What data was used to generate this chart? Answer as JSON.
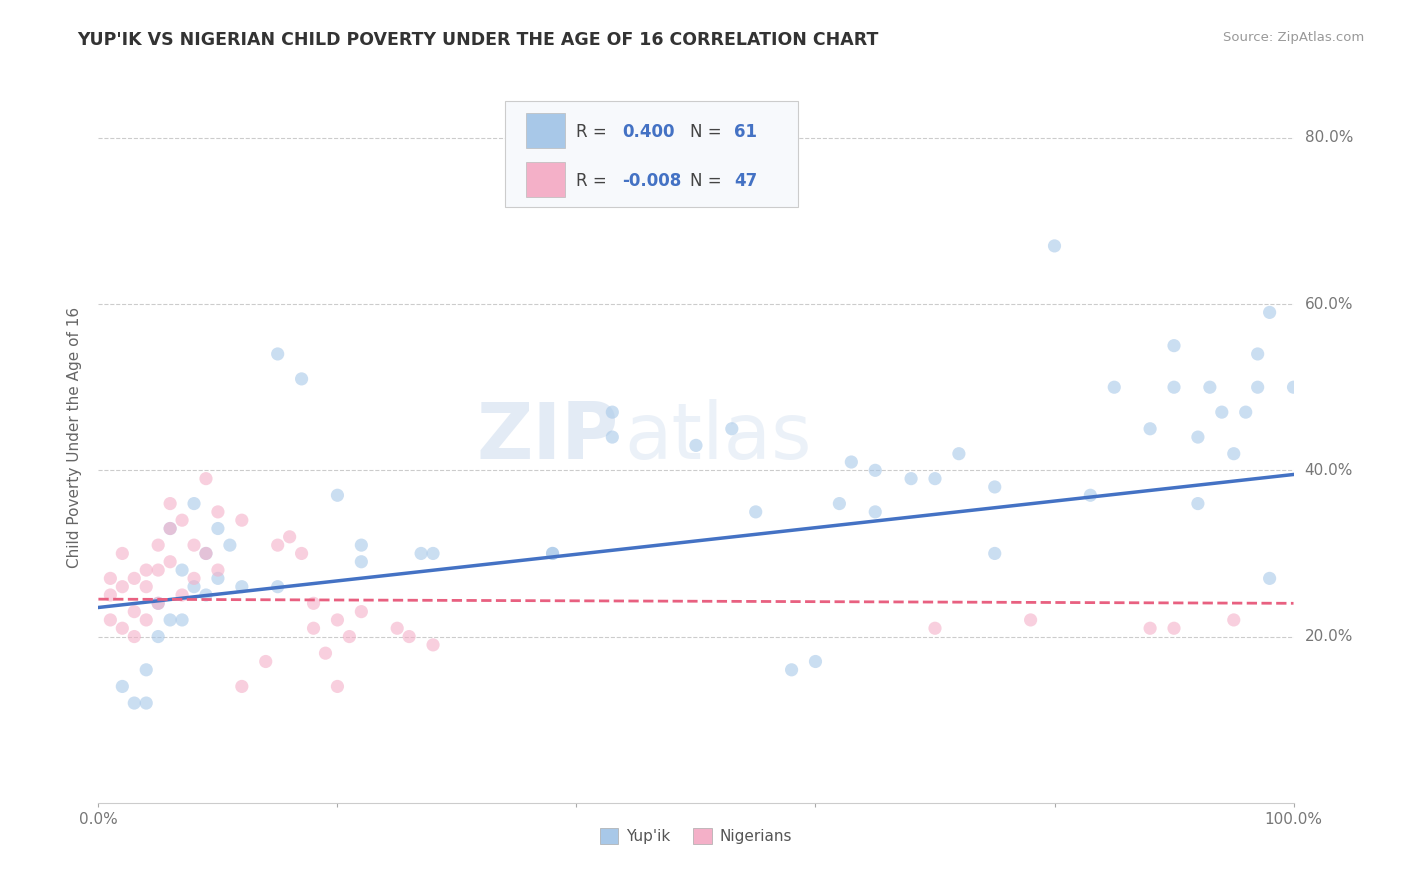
{
  "title": "YUP'IK VS NIGERIAN CHILD POVERTY UNDER THE AGE OF 16 CORRELATION CHART",
  "source": "Source: ZipAtlas.com",
  "ylabel": "Child Poverty Under the Age of 16",
  "xlim": [
    0.0,
    1.0
  ],
  "ylim": [
    0.0,
    0.88
  ],
  "xticks": [
    0.0,
    0.2,
    0.4,
    0.6,
    0.8,
    1.0
  ],
  "xtick_labels": [
    "0.0%",
    "",
    "",
    "",
    "",
    "100.0%"
  ],
  "ytick_values": [
    0.2,
    0.4,
    0.6,
    0.8
  ],
  "ytick_labels": [
    "20.0%",
    "40.0%",
    "60.0%",
    "80.0%"
  ],
  "r_color": "#4472c4",
  "background_color": "#ffffff",
  "grid_color": "#cccccc",
  "yupik_scatter": [
    [
      0.02,
      0.14
    ],
    [
      0.03,
      0.12
    ],
    [
      0.04,
      0.12
    ],
    [
      0.04,
      0.16
    ],
    [
      0.05,
      0.2
    ],
    [
      0.05,
      0.24
    ],
    [
      0.06,
      0.33
    ],
    [
      0.06,
      0.22
    ],
    [
      0.07,
      0.28
    ],
    [
      0.07,
      0.22
    ],
    [
      0.08,
      0.36
    ],
    [
      0.08,
      0.26
    ],
    [
      0.09,
      0.3
    ],
    [
      0.09,
      0.25
    ],
    [
      0.1,
      0.33
    ],
    [
      0.1,
      0.27
    ],
    [
      0.11,
      0.31
    ],
    [
      0.12,
      0.26
    ],
    [
      0.15,
      0.54
    ],
    [
      0.15,
      0.26
    ],
    [
      0.17,
      0.51
    ],
    [
      0.2,
      0.37
    ],
    [
      0.22,
      0.29
    ],
    [
      0.22,
      0.31
    ],
    [
      0.27,
      0.3
    ],
    [
      0.28,
      0.3
    ],
    [
      0.38,
      0.3
    ],
    [
      0.38,
      0.3
    ],
    [
      0.43,
      0.47
    ],
    [
      0.43,
      0.44
    ],
    [
      0.5,
      0.43
    ],
    [
      0.53,
      0.45
    ],
    [
      0.55,
      0.35
    ],
    [
      0.58,
      0.16
    ],
    [
      0.6,
      0.17
    ],
    [
      0.62,
      0.36
    ],
    [
      0.63,
      0.41
    ],
    [
      0.65,
      0.35
    ],
    [
      0.65,
      0.4
    ],
    [
      0.68,
      0.39
    ],
    [
      0.7,
      0.39
    ],
    [
      0.72,
      0.42
    ],
    [
      0.75,
      0.38
    ],
    [
      0.75,
      0.3
    ],
    [
      0.8,
      0.67
    ],
    [
      0.83,
      0.37
    ],
    [
      0.85,
      0.5
    ],
    [
      0.88,
      0.45
    ],
    [
      0.9,
      0.5
    ],
    [
      0.9,
      0.55
    ],
    [
      0.92,
      0.36
    ],
    [
      0.92,
      0.44
    ],
    [
      0.93,
      0.5
    ],
    [
      0.94,
      0.47
    ],
    [
      0.95,
      0.42
    ],
    [
      0.96,
      0.47
    ],
    [
      0.97,
      0.54
    ],
    [
      0.97,
      0.5
    ],
    [
      0.98,
      0.27
    ],
    [
      0.98,
      0.59
    ],
    [
      1.0,
      0.5
    ]
  ],
  "nigerian_scatter": [
    [
      0.01,
      0.25
    ],
    [
      0.01,
      0.27
    ],
    [
      0.01,
      0.22
    ],
    [
      0.02,
      0.3
    ],
    [
      0.02,
      0.26
    ],
    [
      0.02,
      0.21
    ],
    [
      0.03,
      0.23
    ],
    [
      0.03,
      0.27
    ],
    [
      0.03,
      0.2
    ],
    [
      0.04,
      0.28
    ],
    [
      0.04,
      0.22
    ],
    [
      0.04,
      0.26
    ],
    [
      0.05,
      0.31
    ],
    [
      0.05,
      0.24
    ],
    [
      0.05,
      0.28
    ],
    [
      0.06,
      0.33
    ],
    [
      0.06,
      0.36
    ],
    [
      0.06,
      0.29
    ],
    [
      0.07,
      0.34
    ],
    [
      0.07,
      0.25
    ],
    [
      0.08,
      0.31
    ],
    [
      0.08,
      0.27
    ],
    [
      0.09,
      0.39
    ],
    [
      0.09,
      0.3
    ],
    [
      0.1,
      0.35
    ],
    [
      0.1,
      0.28
    ],
    [
      0.12,
      0.34
    ],
    [
      0.12,
      0.14
    ],
    [
      0.14,
      0.17
    ],
    [
      0.15,
      0.31
    ],
    [
      0.16,
      0.32
    ],
    [
      0.17,
      0.3
    ],
    [
      0.18,
      0.21
    ],
    [
      0.18,
      0.24
    ],
    [
      0.19,
      0.18
    ],
    [
      0.2,
      0.14
    ],
    [
      0.2,
      0.22
    ],
    [
      0.21,
      0.2
    ],
    [
      0.22,
      0.23
    ],
    [
      0.25,
      0.21
    ],
    [
      0.26,
      0.2
    ],
    [
      0.28,
      0.19
    ],
    [
      0.7,
      0.21
    ],
    [
      0.78,
      0.22
    ],
    [
      0.88,
      0.21
    ],
    [
      0.9,
      0.21
    ],
    [
      0.95,
      0.22
    ]
  ],
  "yupik_line_x": [
    0.0,
    1.0
  ],
  "yupik_line_y": [
    0.235,
    0.395
  ],
  "nigerian_line_x": [
    0.0,
    1.0
  ],
  "nigerian_line_y": [
    0.245,
    0.24
  ],
  "yupik_color": "#a8c8e8",
  "nigerian_color": "#f4b0c8",
  "yupik_line_color": "#4472c4",
  "nigerian_line_color": "#e86080",
  "scatter_size": 90,
  "scatter_alpha": 0.6,
  "legend_R1": "0.400",
  "legend_N1": "61",
  "legend_R2": "-0.008",
  "legend_N2": "47"
}
